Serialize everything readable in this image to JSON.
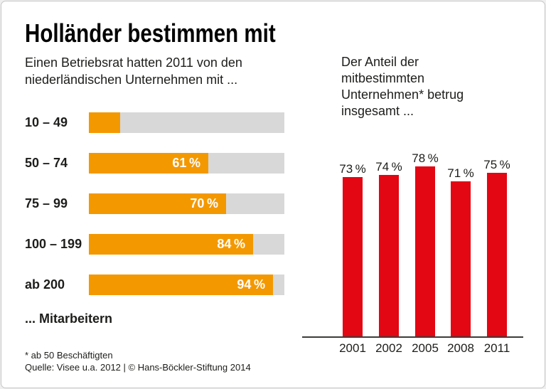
{
  "page": {
    "title": "Holländer bestimmen mit"
  },
  "left_chart": {
    "subtitle": "Einen Betriebsrat hatten 2011 von den\nniederländischen Unternehmen mit ...",
    "footer_label": "... Mitarbeitern"
  },
  "right_chart": {
    "intro": "Der Anteil der\nmitbestimmten\nUnternehmen* betrug\ninsgesamt ..."
  },
  "footnotes": {
    "asterisk": "* ab 50 Beschäftigten",
    "source": "Quelle: Visee u.a. 2012 | © Hans-Böckler-Stiftung 2014"
  },
  "colors": {
    "orange": "#F49800",
    "red": "#E30613",
    "track_gray": "#D8D8D8",
    "axis": "#3C3C3B",
    "text": "#1D1D1B"
  },
  "chart_data": [
    {
      "type": "bar",
      "orientation": "horizontal",
      "title": "Einen Betriebsrat hatten 2011 von den niederländischen Unternehmen mit ... Mitarbeitern",
      "categories": [
        "10 – 49",
        "50 – 74",
        "75 – 99",
        "100 – 199",
        "ab 200"
      ],
      "values": [
        16,
        61,
        70,
        84,
        94
      ],
      "unit": "%",
      "xlim": [
        0,
        100
      ],
      "bar_color": "#F49800",
      "track_color": "#D8D8D8",
      "data_labels": true,
      "legend": "none",
      "grid": false
    },
    {
      "type": "bar",
      "orientation": "vertical",
      "title": "Der Anteil der mitbestimmten Unternehmen* betrug insgesamt ...",
      "categories": [
        "2001",
        "2002",
        "2005",
        "2008",
        "2011"
      ],
      "values": [
        73,
        74,
        78,
        71,
        75
      ],
      "unit": "%",
      "ylim": [
        0,
        100
      ],
      "bar_color": "#E30613",
      "data_labels": true,
      "legend": "none",
      "grid": false
    }
  ]
}
